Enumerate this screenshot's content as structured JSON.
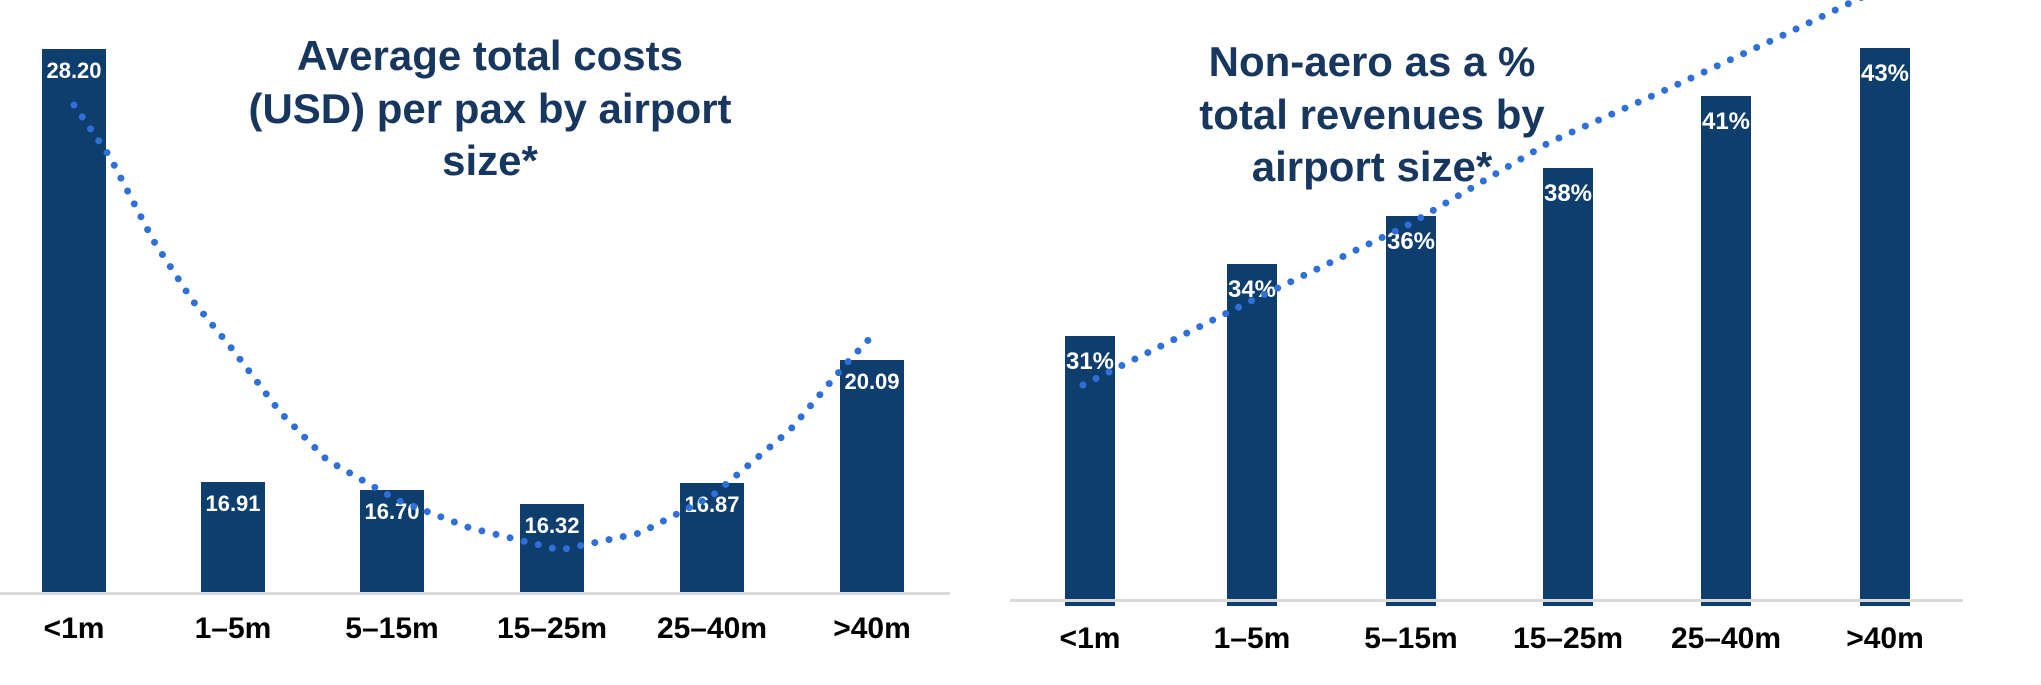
{
  "chart_data": [
    {
      "type": "bar",
      "title": "Average total costs\n(USD) per pax by airport\nsize*",
      "categories": [
        "<1m",
        "1–5m",
        "5–15m",
        "15–25m",
        "25–40m",
        ">40m"
      ],
      "values": [
        28.2,
        16.91,
        16.7,
        16.32,
        16.87,
        20.09
      ],
      "value_labels": [
        "28.20",
        "16.91",
        "16.70",
        "16.32",
        "16.87",
        "20.09"
      ],
      "xlabel": "",
      "ylabel": "",
      "ylim": [
        14,
        28.5
      ],
      "grid": false,
      "legend": "none",
      "bar_color": "#0e3e6e",
      "value_label_color": "#ffffff",
      "title_color": "#17375e",
      "axis_line_color": "#d9d9d9",
      "trendline": {
        "style": "dotted",
        "color": "#2f6fd8",
        "shape": "u-curve",
        "note": "dotted trend falls from <1m, bottoms out near 15–25m, rises toward >40m"
      }
    },
    {
      "type": "bar",
      "title": "Non-aero as a %\ntotal revenues by\nairport size*",
      "categories": [
        "<1m",
        "1–5m",
        "5–15m",
        "15–25m",
        "25–40m",
        ">40m"
      ],
      "values": [
        31,
        34,
        36,
        38,
        41,
        43
      ],
      "value_labels": [
        "31%",
        "34%",
        "36%",
        "38%",
        "41%",
        "43%"
      ],
      "xlabel": "",
      "ylabel": "",
      "ylim": [
        20,
        45
      ],
      "grid": false,
      "legend": "none",
      "bar_color": "#0e3e6e",
      "value_label_color": "#ffffff",
      "title_color": "#17375e",
      "axis_line_color": "#d9d9d9",
      "trendline": {
        "style": "dotted",
        "color": "#2f6fd8",
        "shape": "rising-line",
        "note": "dotted trend rises steadily from <1m past the top of the >40m bar"
      }
    }
  ]
}
